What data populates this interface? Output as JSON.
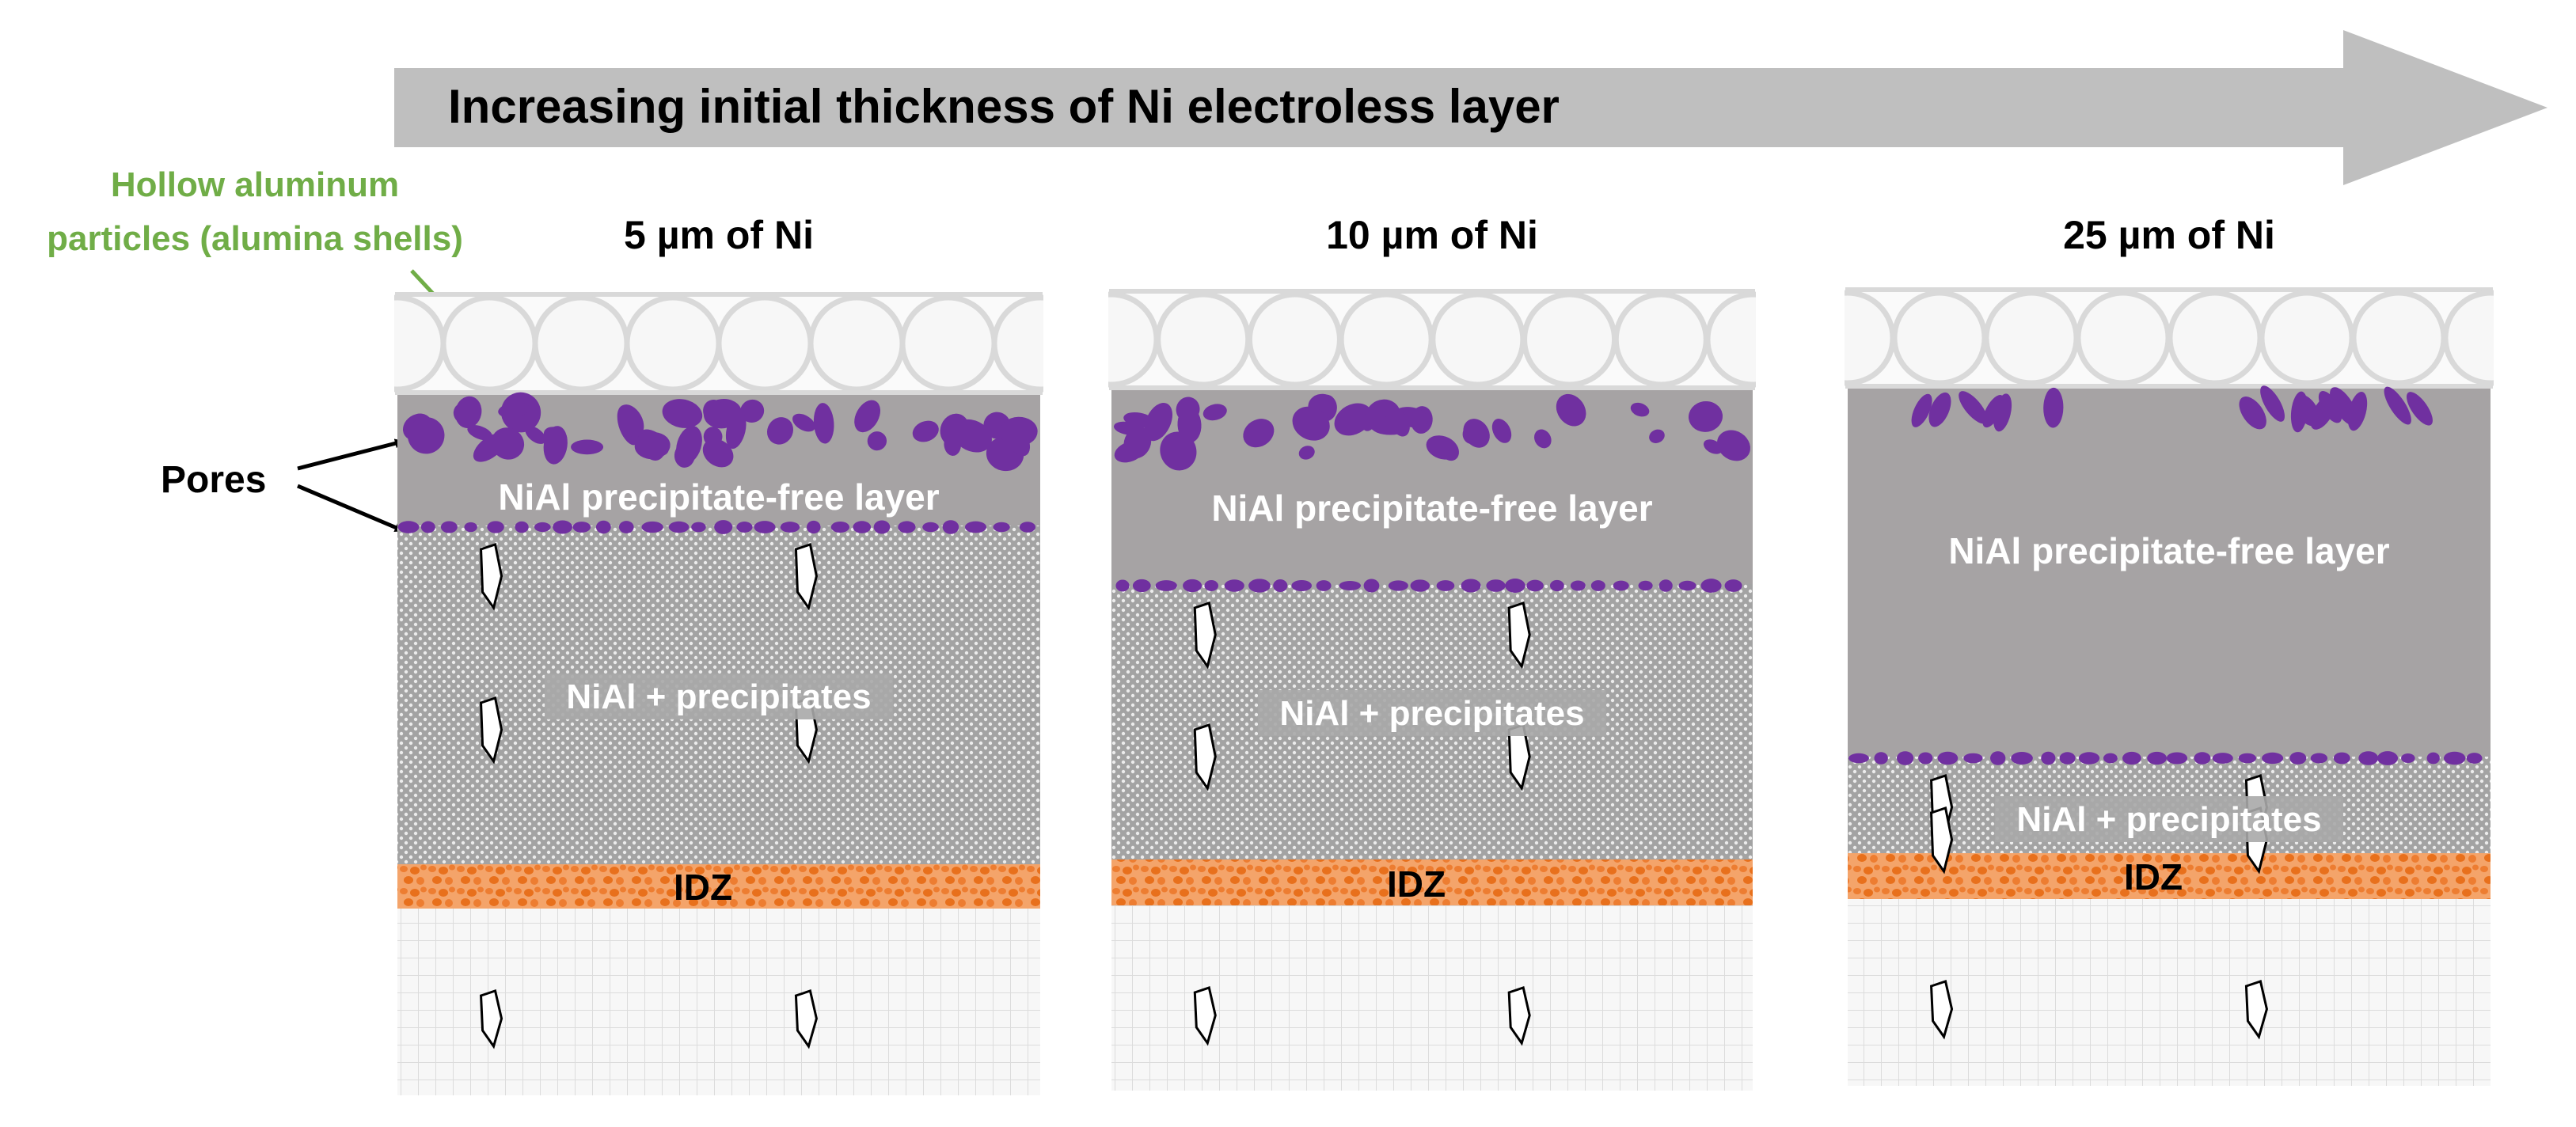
{
  "header": {
    "arrow_label": "Increasing initial thickness of Ni electroless layer"
  },
  "annotations": {
    "hollow_particles": [
      "Hollow aluminum",
      "particles (alumina shells)"
    ],
    "pores": "Pores"
  },
  "panels": [
    {
      "title": "5 µm of Ni",
      "free_layer": "NiAl precipitate-free layer",
      "precip_layer": "NiAl + precipitates",
      "idz": "IDZ"
    },
    {
      "title": "10 µm of Ni",
      "free_layer": "NiAl precipitate-free layer",
      "precip_layer": "NiAl + precipitates",
      "idz": "IDZ"
    },
    {
      "title": "25 µm of Ni",
      "free_layer": "NiAl precipitate-free layer",
      "precip_layer": "NiAl + precipitates",
      "idz": "IDZ"
    }
  ],
  "colors": {
    "arrow": "#bfbfbf",
    "precip_free": "#a6a3a4",
    "precip_dotted": "#a7a7a7",
    "pores": "#7030a0",
    "idz": "#ed7d31",
    "substrate": "#f2f2f2",
    "shells": "#d9d9d9",
    "annotation_green": "#70ad47"
  }
}
